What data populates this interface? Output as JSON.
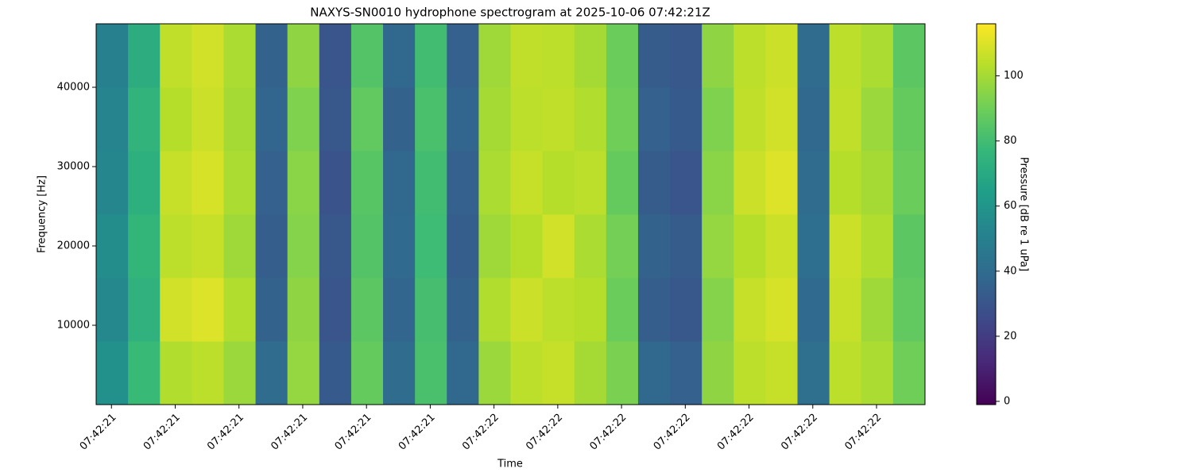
{
  "chart_data": {
    "type": "heatmap",
    "title": "NAXYS-SN0010 hydrophone spectrogram at 2025-10-06 07:42:21Z",
    "xlabel": "Time",
    "ylabel": "Frequency [Hz]",
    "colorbar_label": "Pressure [dB re 1 uPa]",
    "colormap": "viridis",
    "xlim": [
      0,
      13
    ],
    "xticks": [
      {
        "value": 0.24,
        "label": "07:42:21"
      },
      {
        "value": 1.24,
        "label": "07:42:21"
      },
      {
        "value": 2.24,
        "label": "07:42:21"
      },
      {
        "value": 3.24,
        "label": "07:42:21"
      },
      {
        "value": 4.24,
        "label": "07:42:21"
      },
      {
        "value": 5.24,
        "label": "07:42:21"
      },
      {
        "value": 6.24,
        "label": "07:42:22"
      },
      {
        "value": 7.24,
        "label": "07:42:22"
      },
      {
        "value": 8.24,
        "label": "07:42:22"
      },
      {
        "value": 9.24,
        "label": "07:42:22"
      },
      {
        "value": 10.24,
        "label": "07:42:22"
      },
      {
        "value": 11.24,
        "label": "07:42:22"
      },
      {
        "value": 12.24,
        "label": "07:42:22"
      }
    ],
    "ylim": [
      0,
      48000
    ],
    "yticks": [
      10000,
      20000,
      30000,
      40000
    ],
    "clim": [
      -1,
      116
    ],
    "cticks": [
      0,
      20,
      40,
      60,
      80,
      100
    ],
    "xbins": [
      0,
      0.5,
      1,
      1.5,
      2,
      2.5,
      3,
      3.5,
      4,
      4.5,
      5,
      5.5,
      6,
      6.5,
      7,
      7.5,
      8,
      8.5,
      9,
      9.5,
      10,
      10.5,
      11,
      11.5,
      12,
      12.5,
      13
    ],
    "ybins": [
      0,
      8000,
      16000,
      24000,
      32000,
      40000,
      48000
    ],
    "values": [
      [
        58,
        78,
        102,
        104,
        98,
        40,
        97,
        32,
        88,
        40,
        82,
        38,
        98,
        104,
        106,
        100,
        92,
        38,
        35,
        96,
        104,
        106,
        42,
        104,
        101,
        90
      ],
      [
        54,
        74,
        108,
        110,
        102,
        36,
        96,
        30,
        86,
        37,
        81,
        36,
        102,
        107,
        104,
        103,
        89,
        34,
        31,
        94,
        106,
        109,
        39,
        106,
        99,
        87
      ],
      [
        56,
        76,
        104,
        106,
        99,
        34,
        94,
        31,
        84,
        39,
        79,
        34,
        99,
        103,
        108,
        101,
        91,
        36,
        33,
        97,
        103,
        107,
        41,
        107,
        102,
        86
      ],
      [
        53,
        73,
        106,
        109,
        101,
        35,
        95,
        29,
        85,
        38,
        80,
        35,
        101,
        106,
        103,
        104,
        88,
        33,
        30,
        95,
        107,
        110,
        40,
        103,
        100,
        89
      ],
      [
        52,
        75,
        103,
        107,
        100,
        37,
        93,
        31,
        87,
        36,
        82,
        37,
        100,
        104,
        105,
        102,
        90,
        35,
        32,
        93,
        105,
        108,
        38,
        105,
        98,
        88
      ],
      [
        50,
        72,
        105,
        108,
        101,
        36,
        96,
        30,
        84,
        38,
        80,
        35,
        99,
        105,
        104,
        100,
        89,
        33,
        31,
        96,
        104,
        107,
        40,
        104,
        101,
        86
      ]
    ]
  }
}
